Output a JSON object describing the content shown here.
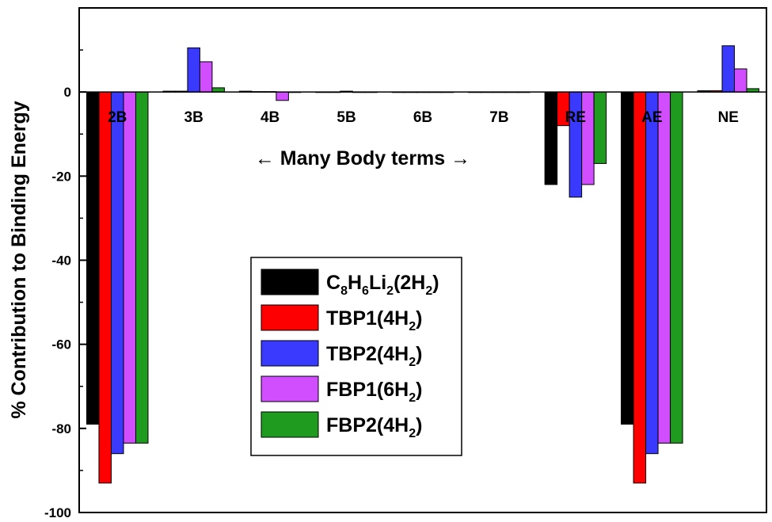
{
  "chart_data": {
    "type": "bar",
    "ylabel": "% Contribution to Binding Energy",
    "xlabel": "",
    "annotation": "← Many Body terms →",
    "ylim": [
      -100,
      20
    ],
    "yticks": [
      -100,
      -80,
      -60,
      -40,
      -20,
      0
    ],
    "categories": [
      "2B",
      "3B",
      "4B",
      "5B",
      "6B",
      "7B",
      "RE",
      "AE",
      "NE"
    ],
    "series": [
      {
        "name": "C8H6Li2(2H2)",
        "label_parts": [
          [
            "C",
            ""
          ],
          [
            "8",
            "sub"
          ],
          [
            "H",
            ""
          ],
          [
            "6",
            "sub"
          ],
          [
            "Li",
            ""
          ],
          [
            "2",
            "sub"
          ],
          [
            "(2H",
            ""
          ],
          [
            "2",
            "sub"
          ],
          [
            ")",
            ""
          ]
        ],
        "color": "#000000",
        "values": [
          -79,
          0.2,
          0.2,
          0,
          0,
          0,
          -22,
          -79,
          0.3
        ]
      },
      {
        "name": "TBP1(4H2)",
        "label_parts": [
          [
            "TBP1(4H",
            ""
          ],
          [
            "2",
            "sub"
          ],
          [
            ")",
            ""
          ]
        ],
        "color": "#ff0000",
        "values": [
          -93,
          0.2,
          0.1,
          0,
          0,
          0,
          -8,
          -93,
          0.3
        ]
      },
      {
        "name": "TBP2(4H2)",
        "label_parts": [
          [
            "TBP2(4H",
            ""
          ],
          [
            "2",
            "sub"
          ],
          [
            ")",
            ""
          ]
        ],
        "color": "#3a3aff",
        "values": [
          -86,
          10.5,
          0.1,
          0.2,
          0,
          0,
          -25,
          -86,
          11
        ]
      },
      {
        "name": "FBP1(6H2)",
        "label_parts": [
          [
            "FBP1(6H",
            ""
          ],
          [
            "2",
            "sub"
          ],
          [
            ")",
            ""
          ]
        ],
        "color": "#d04eff",
        "values": [
          -83.5,
          7.2,
          -2,
          0,
          0,
          0,
          -22,
          -83.5,
          5.5
        ]
      },
      {
        "name": "FBP2(4H2)",
        "label_parts": [
          [
            "FBP2(4H",
            ""
          ],
          [
            "2",
            "sub"
          ],
          [
            ")",
            ""
          ]
        ],
        "color": "#1f9b1f",
        "values": [
          -83.5,
          1,
          0,
          0,
          0,
          0,
          -17,
          -83.5,
          0.8
        ]
      }
    ]
  }
}
